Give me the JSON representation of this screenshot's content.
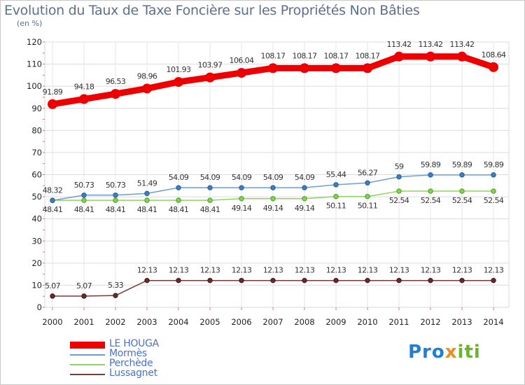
{
  "chart_data": {
    "type": "line",
    "title": "Evolution du Taux de Taxe Foncière sur les Propriétés Non Bâties",
    "ylabel": "(en %)",
    "xlabel": "",
    "ylim": [
      0,
      120
    ],
    "yticks": [
      0,
      10,
      20,
      30,
      40,
      50,
      60,
      70,
      80,
      90,
      100,
      110,
      120
    ],
    "categories": [
      "2000",
      "2001",
      "2002",
      "2003",
      "2004",
      "2005",
      "2006",
      "2007",
      "2008",
      "2009",
      "2010",
      "2011",
      "2012",
      "2013",
      "2014"
    ],
    "grid": true,
    "legend_position": "bottom-left",
    "series": [
      {
        "name": "LE HOUGA",
        "color": "#ee0000",
        "values": [
          91.89,
          94.18,
          96.53,
          98.96,
          101.93,
          103.97,
          106.04,
          108.17,
          108.17,
          108.17,
          108.17,
          113.42,
          113.42,
          113.42,
          108.64
        ],
        "labels": [
          "91.89",
          "94.18",
          "96.53",
          "98.96",
          "101.93",
          "103.97",
          "106.04",
          "108.17",
          "108.17",
          "108.17",
          "108.17",
          "113.42",
          "113.42",
          "113.42",
          "108.64"
        ]
      },
      {
        "name": "Mormès",
        "color": "#6b9fd4",
        "values": [
          48.32,
          50.73,
          50.73,
          51.49,
          54.09,
          54.09,
          54.09,
          54.09,
          54.09,
          55.44,
          56.27,
          59,
          59.89,
          59.89,
          59.89
        ],
        "labels": [
          "48.32",
          "50.73",
          "50.73",
          "51.49",
          "54.09",
          "54.09",
          "54.09",
          "54.09",
          "54.09",
          "55.44",
          "56.27",
          "59",
          "59.89",
          "59.89",
          "59.89"
        ]
      },
      {
        "name": "Perchède",
        "color": "#8fd463",
        "values": [
          48.41,
          48.41,
          48.41,
          48.41,
          48.41,
          48.41,
          49.14,
          49.14,
          49.14,
          50.11,
          50.11,
          52.54,
          52.54,
          52.54,
          52.54
        ],
        "labels": [
          "48.41",
          "48.41",
          "48.41",
          "48.41",
          "48.41",
          "48.41",
          "49.14",
          "49.14",
          "49.14",
          "50.11",
          "50.11",
          "52.54",
          "52.54",
          "52.54",
          "52.54"
        ]
      },
      {
        "name": "Lussagnet",
        "color": "#7a3b3b",
        "values": [
          5.07,
          5.07,
          5.33,
          12.13,
          12.13,
          12.13,
          12.13,
          12.13,
          12.13,
          12.13,
          12.13,
          12.13,
          12.13,
          12.13,
          12.13
        ],
        "labels": [
          "5.07",
          "5.07",
          "5.33",
          "12.13",
          "12.13",
          "12.13",
          "12.13",
          "12.13",
          "12.13",
          "12.13",
          "12.13",
          "12.13",
          "12.13",
          "12.13",
          "12.13"
        ]
      }
    ]
  },
  "branding": {
    "logo_parts": [
      "Pro",
      "x",
      "iti"
    ]
  }
}
